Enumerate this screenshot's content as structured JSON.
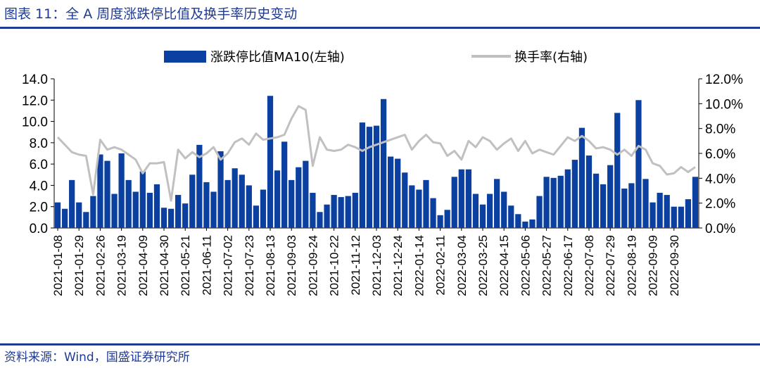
{
  "header": {
    "title": "图表 11：全 A 周度涨跌停比值及换手率历史变动"
  },
  "footer": {
    "source": "资料来源：Wind，国盛证券研究所"
  },
  "chart_data": {
    "type": "bar+line",
    "title": "图表 11：全 A 周度涨跌停比值及换手率历史变动",
    "x_tick_labels": [
      "2021-01-08",
      "2021-01-29",
      "2021-02-26",
      "2021-03-19",
      "2021-04-09",
      "2021-04-30",
      "2021-05-21",
      "2021-06-11",
      "2021-07-02",
      "2021-07-23",
      "2021-08-13",
      "2021-09-03",
      "2021-09-24",
      "2021-10-22",
      "2021-11-12",
      "2021-12-03",
      "2021-12-24",
      "2022-01-14",
      "2022-02-11",
      "2022-03-04",
      "2022-03-25",
      "2022-04-15",
      "2022-05-06",
      "2022-05-27",
      "2022-06-17",
      "2022-07-08",
      "2022-07-29",
      "2022-08-19",
      "2022-09-09",
      "2022-09-30"
    ],
    "y_left": {
      "ticks": [
        "0.0",
        "2.0",
        "4.0",
        "6.0",
        "8.0",
        "10.0",
        "12.0",
        "14.0"
      ],
      "range": [
        0,
        14
      ]
    },
    "y_right": {
      "ticks": [
        "0.0%",
        "2.0%",
        "4.0%",
        "6.0%",
        "8.0%",
        "10.0%",
        "12.0%"
      ],
      "range": [
        0,
        12
      ]
    },
    "series": [
      {
        "name": "涨跌停比值MA10(左轴)",
        "type": "bar",
        "axis": "left",
        "color": "#0b3fa0",
        "values": [
          2.4,
          1.8,
          4.5,
          2.4,
          1.5,
          3.0,
          6.9,
          6.3,
          3.2,
          7.0,
          4.5,
          3.4,
          5.3,
          3.3,
          4.1,
          1.9,
          1.8,
          3.1,
          2.3,
          5.0,
          7.8,
          4.3,
          3.4,
          7.2,
          4.5,
          5.6,
          5.0,
          4.0,
          2.1,
          3.6,
          12.4,
          5.4,
          8.1,
          4.5,
          5.7,
          6.3,
          3.3,
          1.5,
          2.2,
          3.1,
          2.9,
          3.0,
          3.3,
          9.9,
          9.5,
          9.6,
          12.1,
          6.7,
          6.5,
          5.2,
          4.0,
          3.6,
          4.5,
          2.8,
          1.2,
          1.7,
          4.8,
          5.5,
          5.5,
          3.2,
          2.2,
          3.2,
          4.6,
          3.4,
          2.1,
          1.3,
          0.6,
          0.8,
          3.0,
          4.8,
          4.7,
          4.9,
          5.5,
          6.4,
          9.4,
          6.8,
          5.1,
          4.1,
          5.9,
          10.8,
          3.7,
          4.2,
          12.0,
          4.6,
          2.4,
          3.3,
          3.1,
          2.0,
          2.0,
          2.7,
          4.8
        ]
      },
      {
        "name": "换手率(右轴)",
        "type": "line",
        "axis": "right",
        "color": "#c0c0c0",
        "values": [
          7.3,
          6.7,
          6.1,
          5.9,
          5.8,
          2.7,
          7.1,
          6.3,
          6.5,
          6.3,
          5.9,
          5.5,
          4.4,
          5.2,
          5.2,
          5.3,
          2.2,
          6.3,
          5.6,
          6.1,
          5.7,
          6.0,
          6.5,
          5.5,
          6.0,
          6.9,
          7.2,
          6.7,
          7.6,
          7.1,
          7.2,
          7.3,
          7.5,
          8.8,
          9.8,
          9.5,
          5.0,
          7.3,
          6.3,
          6.2,
          6.3,
          6.7,
          6.5,
          6.2,
          6.5,
          6.7,
          6.9,
          7.1,
          7.3,
          7.5,
          6.3,
          7.0,
          7.5,
          6.9,
          6.8,
          5.8,
          6.2,
          5.5,
          7.0,
          6.5,
          7.3,
          7.0,
          6.3,
          6.8,
          7.2,
          6.2,
          7.0,
          6.0,
          6.3,
          6.1,
          5.9,
          6.6,
          7.3,
          7.0,
          7.4,
          7.0,
          6.4,
          6.5,
          6.3,
          5.9,
          6.3,
          5.8,
          6.6,
          6.3,
          5.2,
          5.0,
          4.3,
          4.4,
          4.9,
          4.5,
          4.9
        ]
      }
    ],
    "legend": {
      "placement": "top-center"
    }
  }
}
